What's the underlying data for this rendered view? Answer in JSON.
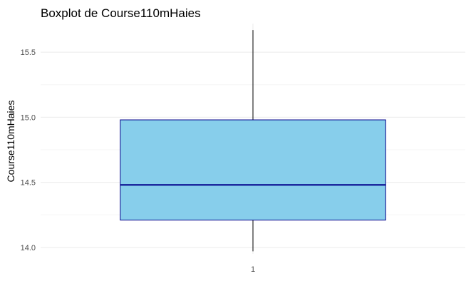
{
  "chart_data": {
    "type": "boxplot",
    "title": "Boxplot de Course110mHaies",
    "xlabel": "",
    "ylabel": "Course110mHaies",
    "x_ticks": [
      "1"
    ],
    "y_ticks": [
      "14.0",
      "14.5",
      "15.0",
      "15.5"
    ],
    "ylim": [
      13.95,
      15.72
    ],
    "grid": true,
    "boxes": [
      {
        "category": "1",
        "min": 13.97,
        "q1": 14.21,
        "median": 14.48,
        "q3": 14.98,
        "max": 15.67
      }
    ],
    "colors": {
      "box_fill": "#87CEEB",
      "box_stroke": "#00008B",
      "median_line": "#00008B",
      "whisker": "#000000",
      "grid_major": "#ebebeb",
      "grid_minor": "#f5f5f5"
    }
  }
}
